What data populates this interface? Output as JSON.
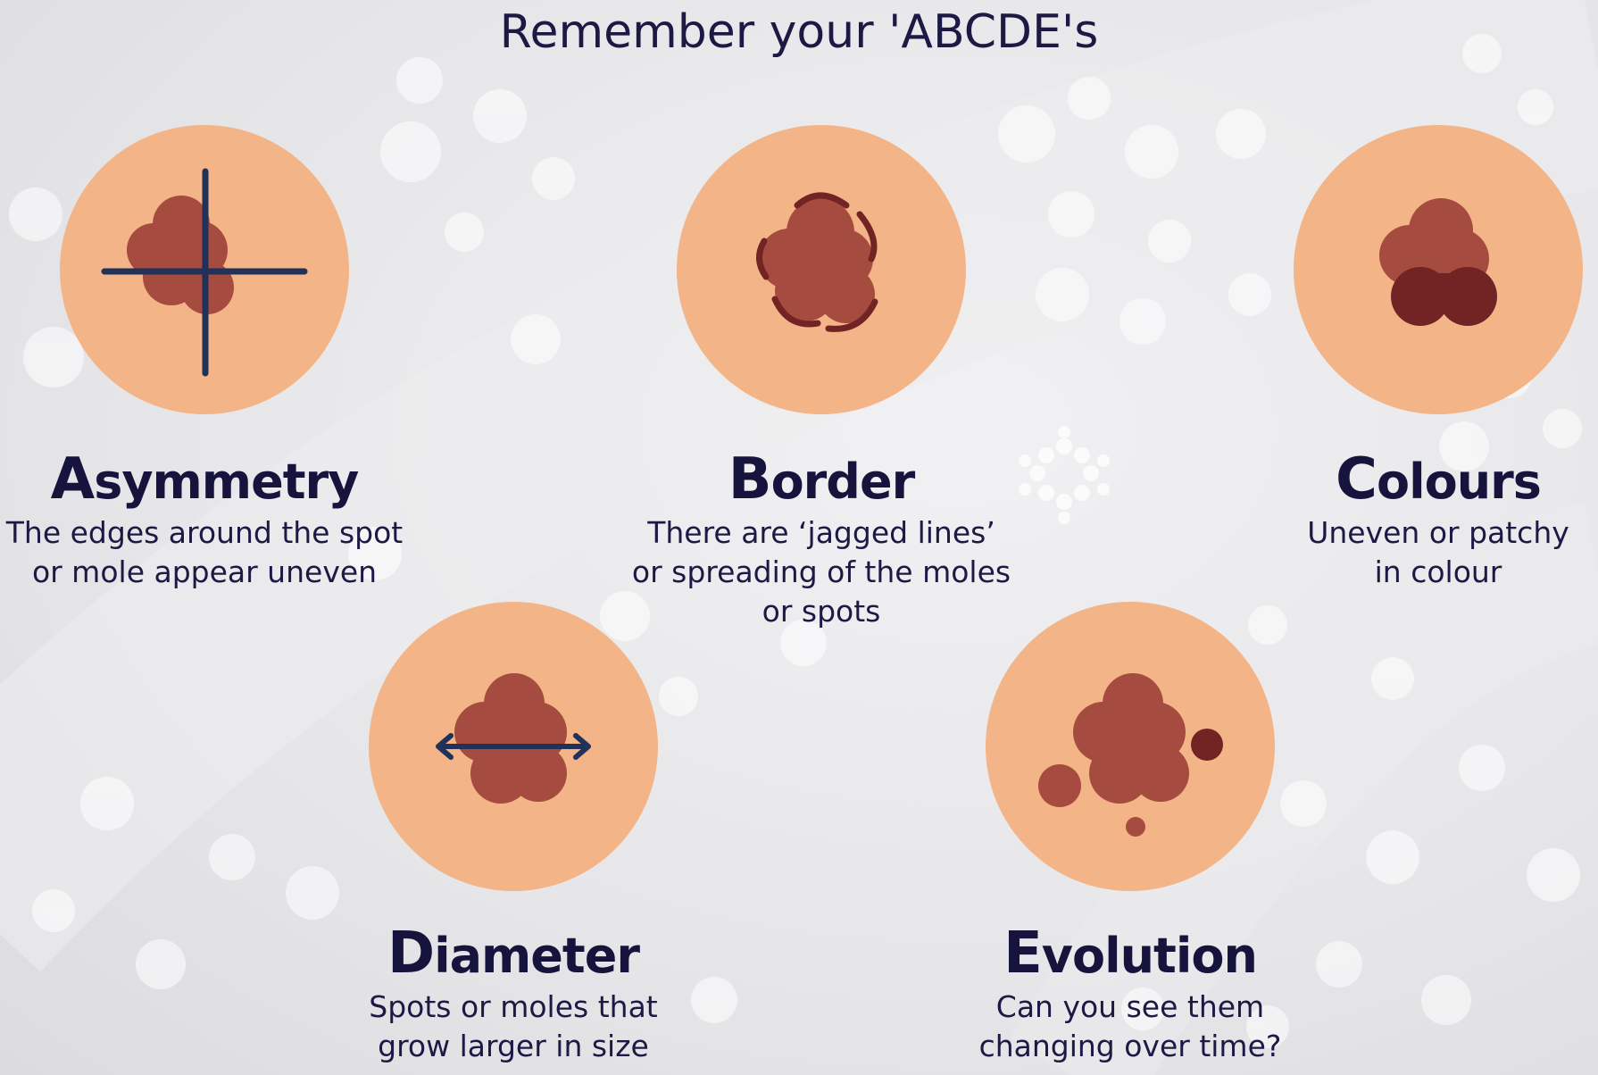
{
  "title": "Remember your 'ABCDE's",
  "colors": {
    "skin": "#f3b487",
    "mole": "#a64b3f",
    "mole_dark": "#722424",
    "ink": "#1c1a45"
  },
  "items": [
    {
      "letter": "A",
      "rest": "symmetry",
      "desc_lines": [
        "The edges around the spot",
        "or mole appear uneven"
      ],
      "icon": "asymmetry-mole-icon"
    },
    {
      "letter": "B",
      "rest": "order",
      "desc_lines": [
        "There are ‘jagged lines’",
        "or spreading of the moles",
        "or spots"
      ],
      "icon": "border-mole-icon"
    },
    {
      "letter": "C",
      "rest": "olours",
      "desc_lines": [
        "Uneven or patchy",
        "in colour"
      ],
      "icon": "colours-mole-icon"
    },
    {
      "letter": "D",
      "rest": "iameter",
      "desc_lines": [
        "Spots or moles that",
        "grow larger in size"
      ],
      "icon": "diameter-mole-icon"
    },
    {
      "letter": "E",
      "rest": "volution",
      "desc_lines": [
        "Can you see them",
        "changing over time?"
      ],
      "icon": "evolution-mole-icon"
    }
  ]
}
